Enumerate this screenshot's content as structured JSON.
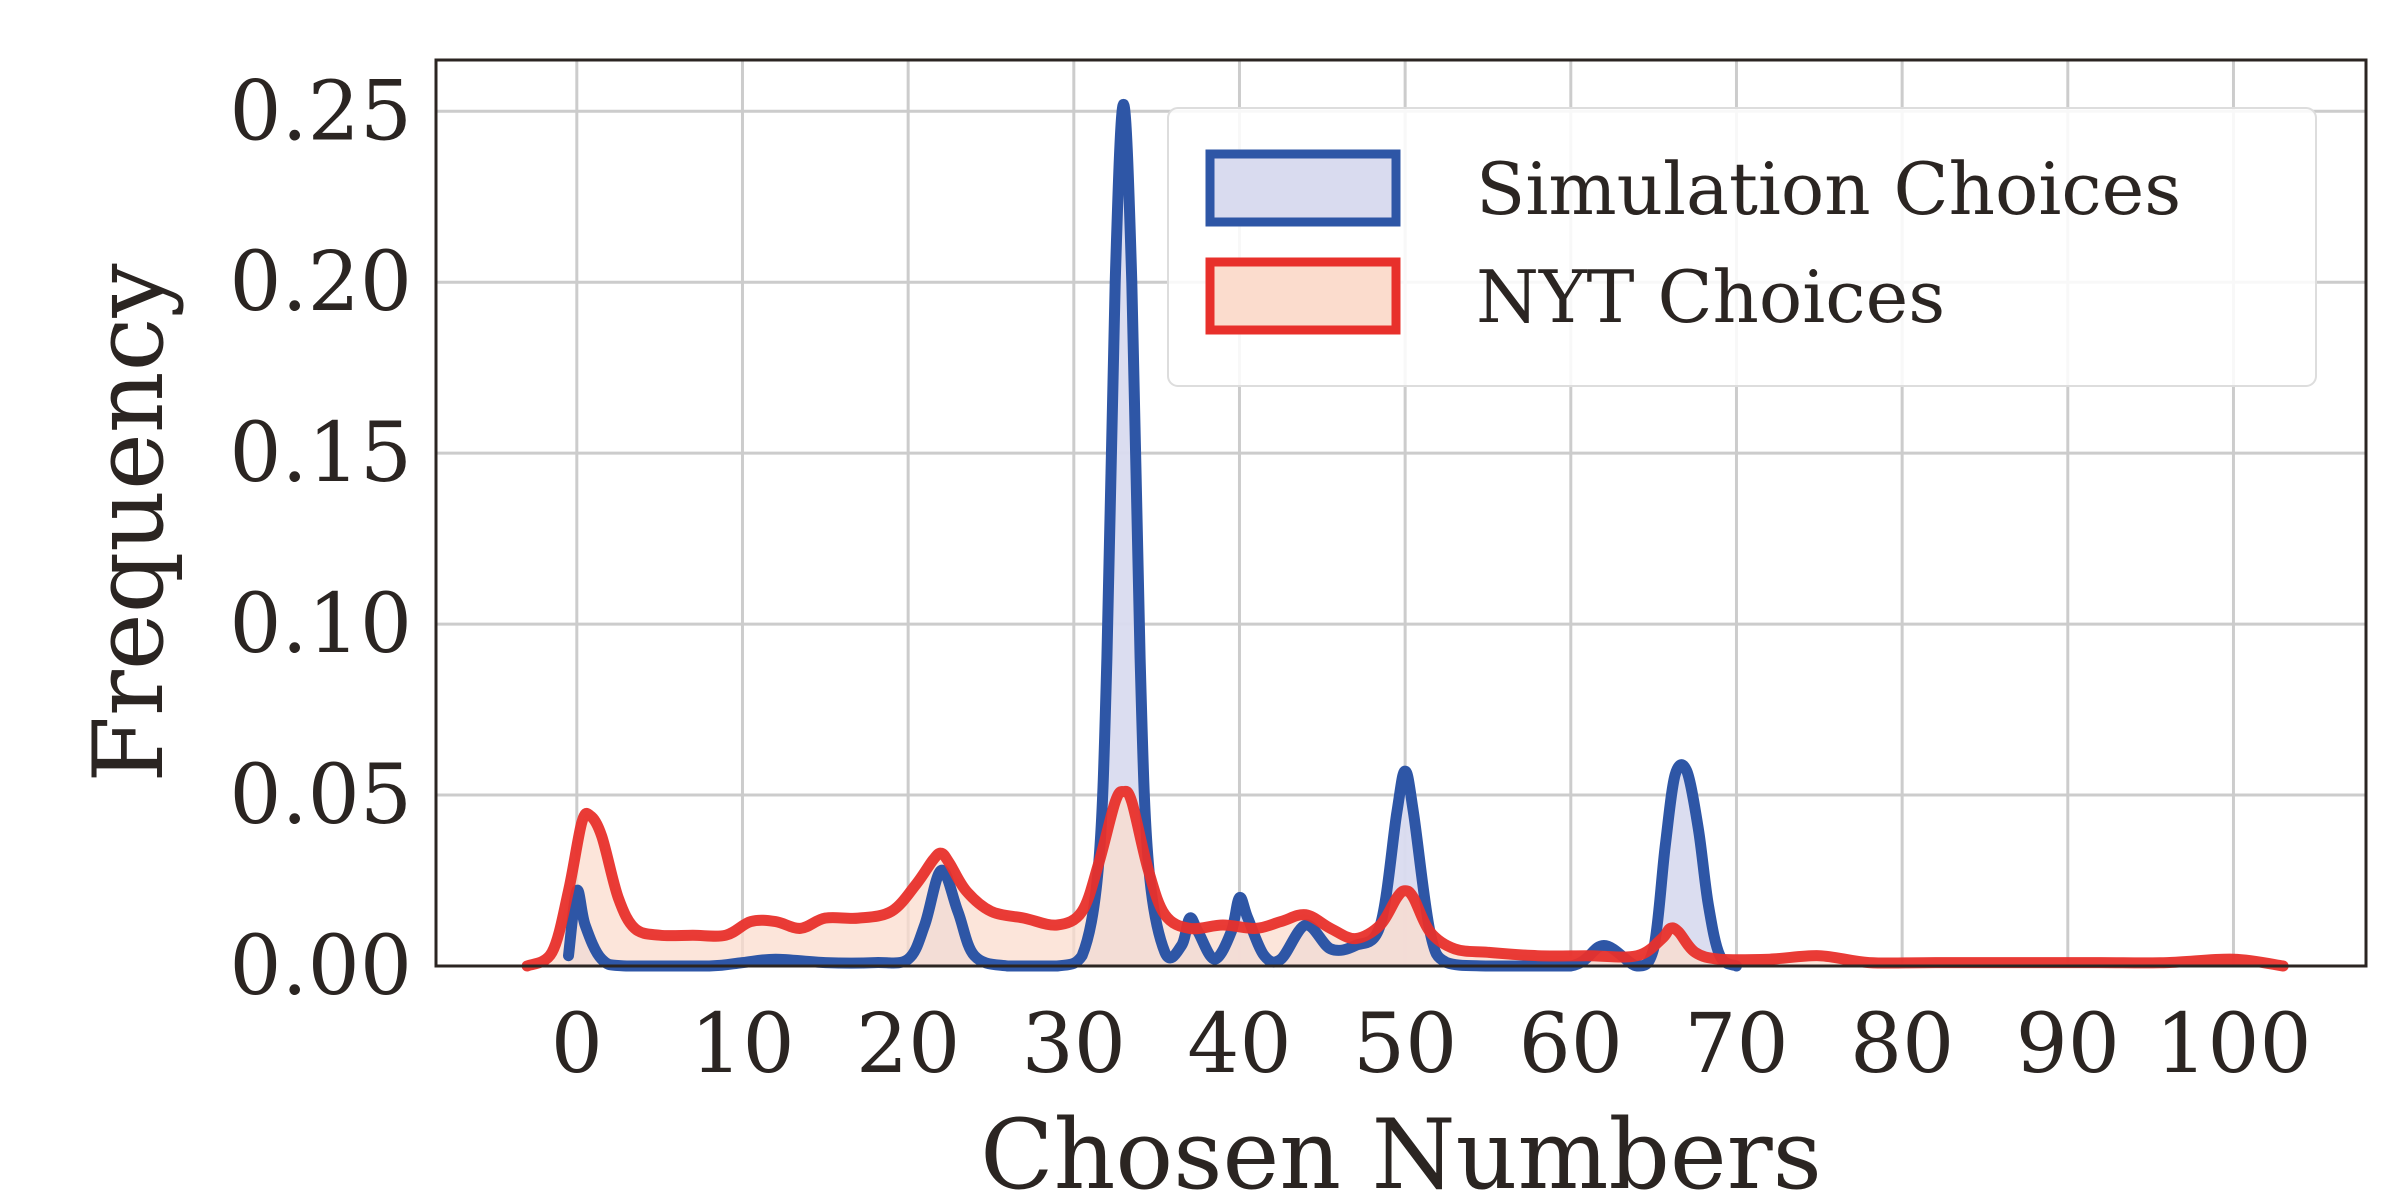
{
  "chart_data": {
    "type": "area",
    "title": "",
    "xlabel": "Chosen Numbers",
    "ylabel": "Frequency",
    "xlim": [
      -8.5,
      108
    ],
    "ylim": [
      0,
      0.265
    ],
    "grid": true,
    "legend_placement": "top-right",
    "x_ticks": [
      0,
      10,
      20,
      30,
      40,
      50,
      60,
      70,
      80,
      90,
      100
    ],
    "x_tick_labels": [
      "0",
      "10",
      "20",
      "30",
      "40",
      "50",
      "60",
      "70",
      "80",
      "90",
      "100"
    ],
    "y_ticks": [
      0,
      0.05,
      0.1,
      0.15,
      0.2,
      0.25
    ],
    "y_tick_labels": [
      "0.00",
      "0.05",
      "0.10",
      "0.15",
      "0.20",
      "0.25"
    ],
    "series": [
      {
        "name": "Simulation Choices",
        "line_color": "#2e56a6",
        "fill_color": "#d9dbef",
        "x": [
          -0.5,
          0,
          0.5,
          1.5,
          3,
          8,
          10,
          12,
          15,
          18,
          20,
          21,
          22,
          23,
          24,
          26,
          29,
          30.5,
          31.5,
          32,
          32.5,
          33,
          33.5,
          34,
          34.5,
          35.5,
          36.5,
          37,
          37.5,
          38.5,
          39.5,
          40,
          40.5,
          41.5,
          42.5,
          44,
          45.5,
          47,
          48.5,
          49.5,
          50,
          50.5,
          51.5,
          52.5,
          55,
          60,
          62,
          64,
          65,
          65.7,
          66.3,
          67,
          67.7,
          68.3,
          69,
          70
        ],
        "y": [
          0.003,
          0.022,
          0.012,
          0.002,
          0,
          0,
          0.001,
          0.002,
          0.001,
          0.001,
          0.002,
          0.012,
          0.028,
          0.016,
          0.003,
          0,
          0,
          0.003,
          0.03,
          0.09,
          0.2,
          0.252,
          0.2,
          0.09,
          0.03,
          0.004,
          0.006,
          0.014,
          0.01,
          0.002,
          0.01,
          0.02,
          0.014,
          0.003,
          0.002,
          0.012,
          0.005,
          0.006,
          0.012,
          0.045,
          0.057,
          0.045,
          0.01,
          0.001,
          0,
          0,
          0.006,
          0,
          0.005,
          0.035,
          0.056,
          0.057,
          0.04,
          0.018,
          0.003,
          0
        ]
      },
      {
        "name": "NYT Choices",
        "line_color": "#e8302b",
        "fill_color": "#fbdccd",
        "x": [
          -3,
          -1.5,
          -0.5,
          0.3,
          0.8,
          1.5,
          2.5,
          3.5,
          5,
          7,
          9,
          10.5,
          12,
          13.5,
          15,
          17,
          19,
          20.5,
          21.5,
          22,
          22.5,
          23.5,
          25,
          27,
          29,
          30.5,
          31.5,
          32.5,
          33,
          33.5,
          34.5,
          35.5,
          37,
          39,
          41,
          42.5,
          44,
          45.5,
          47,
          48.5,
          49.5,
          50,
          50.5,
          51.5,
          53,
          55,
          58,
          61,
          64,
          65.5,
          66,
          66.5,
          67.5,
          69,
          72,
          75,
          78,
          82,
          88,
          92,
          96,
          100,
          103
        ],
        "y": [
          0,
          0.004,
          0.022,
          0.042,
          0.044,
          0.038,
          0.02,
          0.011,
          0.009,
          0.009,
          0.009,
          0.013,
          0.013,
          0.011,
          0.014,
          0.014,
          0.016,
          0.024,
          0.031,
          0.033,
          0.03,
          0.022,
          0.016,
          0.014,
          0.012,
          0.016,
          0.03,
          0.048,
          0.051,
          0.048,
          0.028,
          0.015,
          0.011,
          0.012,
          0.011,
          0.013,
          0.015,
          0.011,
          0.008,
          0.012,
          0.02,
          0.022,
          0.02,
          0.01,
          0.005,
          0.004,
          0.003,
          0.003,
          0.003,
          0.008,
          0.011,
          0.01,
          0.004,
          0.002,
          0.002,
          0.003,
          0.001,
          0.001,
          0.001,
          0.001,
          0.001,
          0.002,
          0
        ]
      }
    ]
  }
}
